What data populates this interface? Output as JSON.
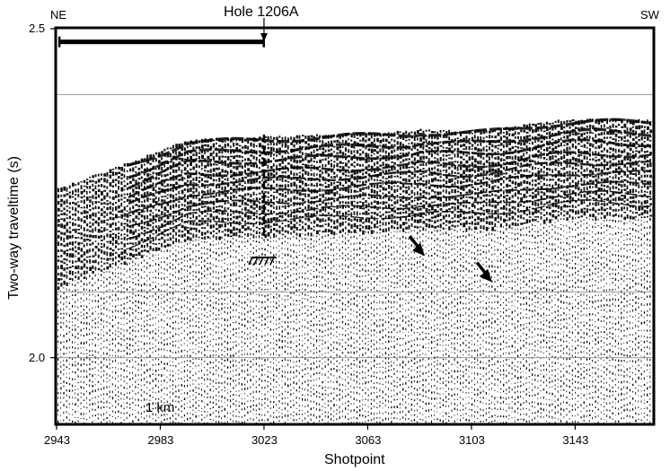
{
  "chart_data": {
    "type": "seismic-section",
    "title": "",
    "xlabel": "Shotpoint",
    "ylabel": "Two-way traveltime (s)",
    "xlim": [
      2943,
      3173
    ],
    "ylim": [
      2.5,
      1.9
    ],
    "x_ticks": [
      2943,
      2983,
      3023,
      3063,
      3103,
      3143
    ],
    "x_tick_labels": [
      "2943",
      "2983",
      "3023",
      "3063",
      "3103",
      "3143"
    ],
    "y_ticks": [
      2.0,
      2.5
    ],
    "y_tick_labels": [
      "2.0",
      "2.5"
    ],
    "gridlines_y": [
      2.0,
      2.1,
      2.4
    ],
    "annotations": {
      "left_direction": "NE",
      "right_direction": "SW",
      "hole": {
        "label": "Hole 1206A",
        "shotpoint": 3023
      },
      "scale_bar": {
        "label": "1 km",
        "from_shotpoint": 2944,
        "to_shotpoint": 3023,
        "time": 2.48
      },
      "arrows": [
        {
          "shotpoint": 3084,
          "time": 2.16
        },
        {
          "shotpoint": 3110,
          "time": 2.12
        }
      ]
    },
    "grid": true,
    "legend": "none"
  }
}
